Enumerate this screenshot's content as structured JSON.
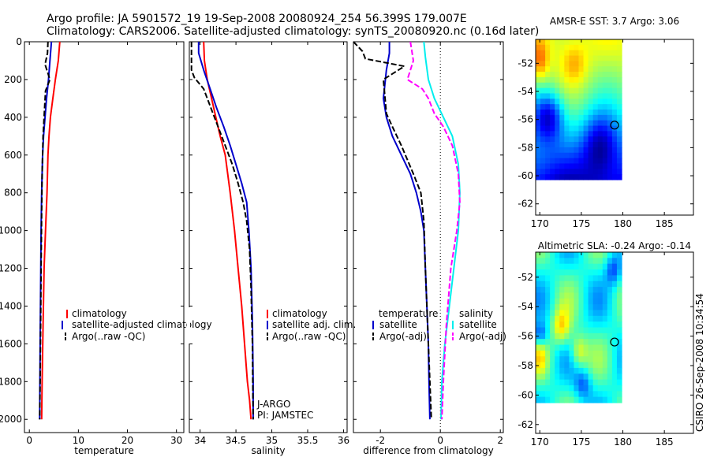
{
  "title": {
    "line1": "Argo profile: JA 5901572_19 19-Sep-2008 20080924_254 56.399S 179.007E",
    "line2": "Climatology: CARS2006. Satellite-adjusted climatology: synTS_20080920.nc (0.16d later)"
  },
  "credit": "CSIRO 26-Sep-2008 10:34:54",
  "colors": {
    "climatology": "#ff0000",
    "satellite": "#0000cc",
    "argo": "#000000",
    "salinity_satellite": "#00eeee",
    "salinity_argo": "#ff00ff"
  },
  "chart_data": [
    {
      "type": "line",
      "id": "temperature",
      "xlabel": "temperature",
      "ylabel": "",
      "xlim": [
        -1,
        31.5
      ],
      "ylim": [
        2070,
        0
      ],
      "xticks": [
        0,
        10,
        20,
        30
      ],
      "yticks": [
        0,
        200,
        400,
        600,
        800,
        1000,
        1200,
        1400,
        1600,
        1800,
        2000
      ],
      "y_reversed": true,
      "legend": {
        "placement": "lower-right",
        "entries": [
          "climatology",
          "satellite-adjusted climatology",
          "Argo(..raw -QC)"
        ]
      },
      "annotations": [],
      "series": [
        {
          "name": "climatology",
          "color": "#ff0000",
          "style": "solid",
          "x": [
            6.2,
            5.9,
            5.3,
            4.8,
            4.3,
            4.0,
            3.8,
            3.6,
            3.3,
            3.0,
            2.8,
            2.6,
            2.5
          ],
          "y": [
            0,
            100,
            200,
            300,
            400,
            500,
            600,
            800,
            1000,
            1200,
            1500,
            1800,
            2000
          ]
        },
        {
          "name": "satellite-adjusted climatology",
          "color": "#0000cc",
          "style": "solid",
          "x": [
            4.5,
            4.2,
            3.9,
            3.5,
            3.2,
            2.9,
            2.7,
            2.5,
            2.4,
            2.3,
            2.2,
            2.1
          ],
          "y": [
            0,
            100,
            200,
            300,
            400,
            500,
            600,
            800,
            1000,
            1300,
            1600,
            2000
          ]
        },
        {
          "name": "Argo(..raw -QC)",
          "color": "#000000",
          "style": "dashed",
          "x": [
            3.8,
            3.7,
            3.2,
            4.2,
            3.3,
            3.0,
            2.8,
            2.6,
            2.5,
            2.4,
            2.3,
            2.2,
            2.1
          ],
          "y": [
            0,
            60,
            120,
            200,
            260,
            400,
            500,
            700,
            900,
            1200,
            1500,
            1800,
            2000
          ]
        }
      ]
    },
    {
      "type": "line",
      "id": "salinity",
      "xlabel": "salinity",
      "ylabel": "",
      "xlim": [
        33.85,
        36.05
      ],
      "ylim": [
        2070,
        0
      ],
      "xticks": [
        34,
        34.5,
        35,
        35.5,
        36
      ],
      "yticks": [
        0,
        200,
        400,
        600,
        800,
        1000,
        1200,
        1400,
        1600,
        1800,
        2000
      ],
      "y_reversed": true,
      "legend": {
        "placement": "lower-right",
        "entries": [
          "climatology",
          "satellite adj. clim.",
          "Argo(..raw -QC)"
        ]
      },
      "annotations": [
        "J-ARGO",
        "PI: JAMSTEC"
      ],
      "series": [
        {
          "name": "climatology",
          "color": "#ff0000",
          "style": "solid",
          "x": [
            34.05,
            34.06,
            34.1,
            34.16,
            34.22,
            34.28,
            34.35,
            34.42,
            34.48,
            34.53,
            34.58,
            34.62,
            34.66,
            34.69,
            34.71
          ],
          "y": [
            0,
            100,
            200,
            300,
            400,
            500,
            600,
            800,
            1000,
            1200,
            1400,
            1600,
            1800,
            1900,
            2000
          ]
        },
        {
          "name": "satellite adj. clim.",
          "color": "#0000cc",
          "style": "solid",
          "x": [
            33.98,
            33.98,
            34.05,
            34.14,
            34.23,
            34.33,
            34.42,
            34.5,
            34.58,
            34.65,
            34.68,
            34.71,
            34.73,
            34.74,
            34.74
          ],
          "y": [
            0,
            60,
            150,
            250,
            350,
            450,
            550,
            650,
            750,
            850,
            1000,
            1200,
            1500,
            1800,
            2000
          ]
        },
        {
          "name": "Argo(..raw -QC)",
          "color": "#000000",
          "style": "dashed",
          "x": [
            33.88,
            33.88,
            33.92,
            34.05,
            34.15,
            34.25,
            34.35,
            34.45,
            34.53,
            34.6,
            34.65,
            34.69,
            34.71,
            34.73,
            34.74
          ],
          "y": [
            0,
            150,
            190,
            250,
            350,
            450,
            550,
            650,
            750,
            850,
            950,
            1100,
            1300,
            1600,
            2000
          ]
        }
      ]
    },
    {
      "type": "line",
      "id": "difference",
      "xlabel": "difference from climatology",
      "ylabel": "",
      "xlim": [
        -2.9,
        2.1
      ],
      "ylim": [
        2070,
        0
      ],
      "xticks": [
        -2,
        0,
        2
      ],
      "yticks": [
        0,
        200,
        400,
        600,
        800,
        1000,
        1200,
        1400,
        1600,
        1800,
        2000
      ],
      "y_reversed": true,
      "reference_line_x": 0,
      "legend_temperature": {
        "placement": "lower-left",
        "title": "temperature",
        "entries": [
          "satellite",
          "Argo(-adj)"
        ]
      },
      "legend_salinity": {
        "placement": "lower-right",
        "title": "salinity",
        "entries": [
          "satellite",
          "Argo(-adj)"
        ]
      },
      "series": [
        {
          "name": "temperature satellite",
          "color": "#0000cc",
          "style": "solid",
          "x": [
            -1.7,
            -1.7,
            -1.8,
            -1.9,
            -1.8,
            -1.6,
            -1.3,
            -1.0,
            -0.8,
            -0.65,
            -0.55,
            -0.5,
            -0.45,
            -0.4,
            -0.38,
            -0.35
          ],
          "y": [
            0,
            60,
            150,
            300,
            400,
            500,
            600,
            700,
            800,
            900,
            1000,
            1200,
            1400,
            1600,
            1800,
            2000
          ]
        },
        {
          "name": "temperature Argo(-adj)",
          "color": "#000000",
          "style": "dashed",
          "x": [
            -2.9,
            -2.6,
            -2.5,
            -1.2,
            -1.9,
            -1.8,
            -1.6,
            -1.3,
            -0.9,
            -0.65,
            -0.55,
            -0.5,
            -0.45,
            -0.4,
            -0.35,
            -0.3
          ],
          "y": [
            0,
            50,
            90,
            130,
            200,
            380,
            450,
            550,
            700,
            800,
            950,
            1200,
            1400,
            1600,
            1800,
            2000
          ]
        },
        {
          "name": "salinity satellite",
          "color": "#00eeee",
          "style": "solid",
          "x": [
            -0.55,
            -0.5,
            -0.4,
            -0.2,
            0.1,
            0.4,
            0.6,
            0.65,
            0.6,
            0.45,
            0.3,
            0.15,
            0.05,
            0.02
          ],
          "y": [
            0,
            80,
            200,
            300,
            400,
            500,
            650,
            800,
            1000,
            1200,
            1400,
            1600,
            1800,
            2000
          ]
        },
        {
          "name": "salinity Argo(-adj)",
          "color": "#ff00ff",
          "style": "dashed",
          "x": [
            -1.0,
            -0.9,
            -1.1,
            -0.6,
            -0.4,
            -0.2,
            0.1,
            0.4,
            0.6,
            0.65,
            0.55,
            0.35,
            0.2,
            0.1,
            0.05
          ],
          "y": [
            0,
            100,
            200,
            250,
            300,
            380,
            450,
            550,
            700,
            850,
            1000,
            1200,
            1500,
            1800,
            2000
          ]
        }
      ]
    },
    {
      "type": "heatmap",
      "id": "sst",
      "title": "AMSR-E SST: 3.7 Argo: 3.06",
      "xlim": [
        169.5,
        188.5
      ],
      "ylim": [
        -62.8,
        -50.3
      ],
      "xticks": [
        170,
        175,
        180,
        185
      ],
      "yticks": [
        -52,
        -54,
        -56,
        -58,
        -60,
        -62
      ],
      "grid": false,
      "marker": {
        "lon": 179.0,
        "lat": -56.4
      }
    },
    {
      "type": "heatmap",
      "id": "sla",
      "title": "Altimetric SLA: -0.24 Argo: -0.14",
      "xlim": [
        169.5,
        188.5
      ],
      "ylim": [
        -62.6,
        -50.3
      ],
      "xticks": [
        170,
        175,
        180,
        185
      ],
      "yticks": [
        -52,
        -54,
        -56,
        -58,
        -60,
        -62
      ],
      "grid": false,
      "marker": {
        "lon": 179.0,
        "lat": -56.4
      }
    }
  ]
}
